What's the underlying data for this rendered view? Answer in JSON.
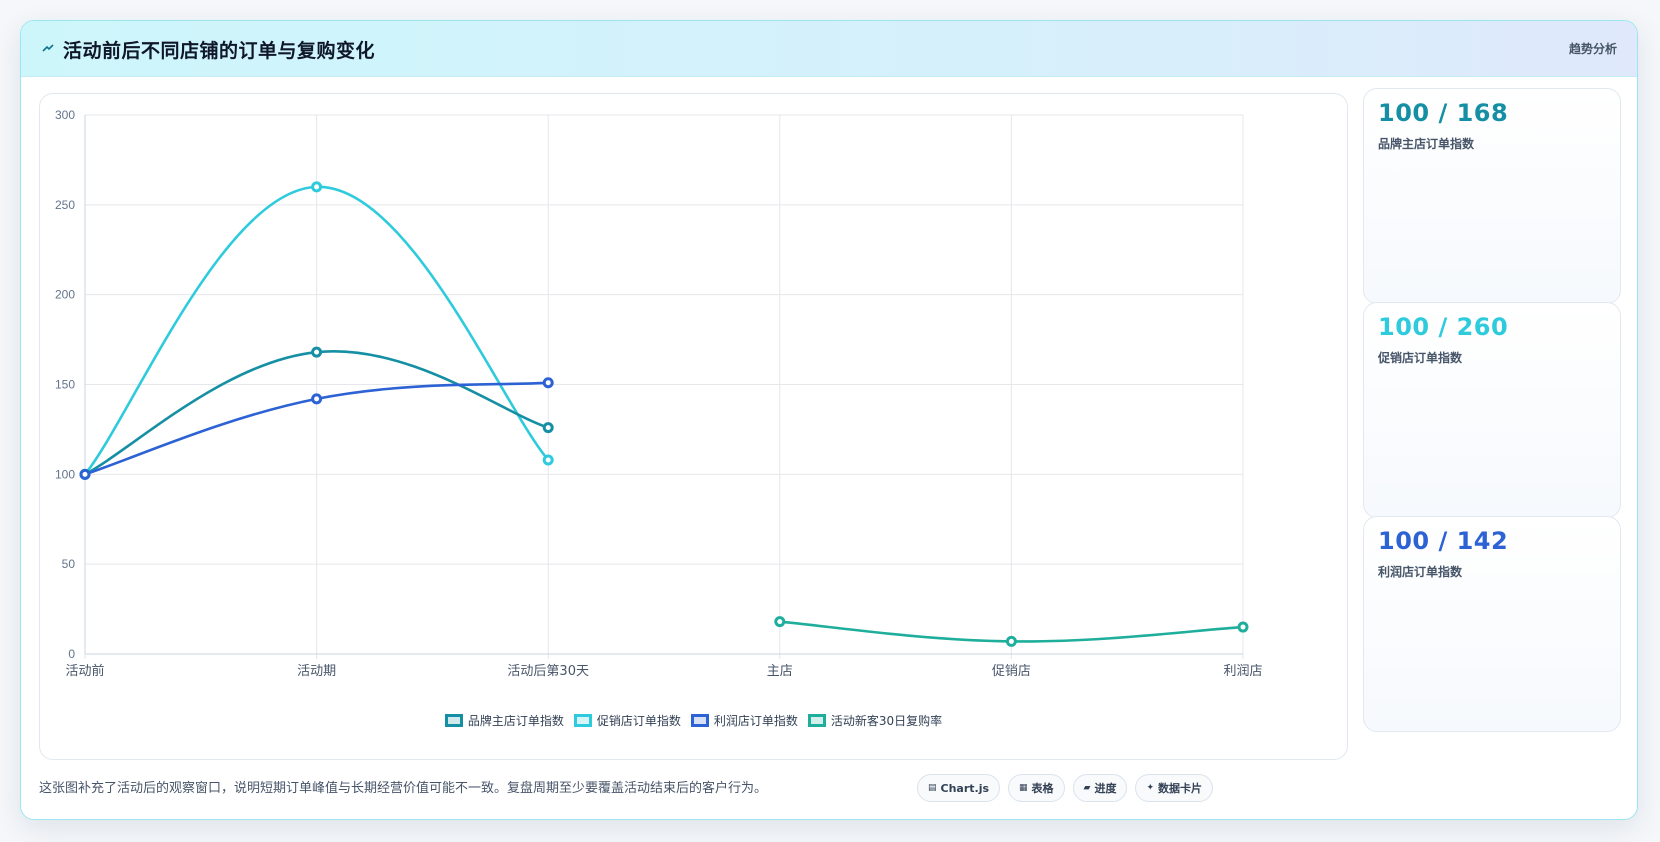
{
  "header": {
    "title": "活动前后不同店铺的订单与复购变化",
    "tag": "趋势分析"
  },
  "chart_data": {
    "type": "line",
    "categories": [
      "活动前",
      "活动期",
      "活动后第30天",
      "主店",
      "促销店",
      "利润店"
    ],
    "ylim": [
      0,
      300
    ],
    "yticks": [
      0,
      50,
      100,
      150,
      200,
      250,
      300
    ],
    "grid": true,
    "legend_position": "bottom",
    "series": [
      {
        "name": "品牌主店订单指数",
        "color": "#158fa3",
        "values": [
          100,
          168,
          126,
          null,
          null,
          null
        ]
      },
      {
        "name": "促销店订单指数",
        "color": "#2ecbdd",
        "values": [
          100,
          260,
          108,
          null,
          null,
          null
        ]
      },
      {
        "name": "利润店订单指数",
        "color": "#2c62d4",
        "values": [
          100,
          142,
          151,
          null,
          null,
          null
        ]
      },
      {
        "name": "活动新客30日复购率",
        "color": "#1fae9c",
        "values": [
          null,
          null,
          null,
          18,
          7,
          15
        ]
      }
    ]
  },
  "stats": [
    {
      "value": "100 / 168",
      "label": "品牌主店订单指数",
      "color": "#158fa3"
    },
    {
      "value": "100 / 260",
      "label": "促销店订单指数",
      "color": "#2ecbdd"
    },
    {
      "value": "100 / 142",
      "label": "利润店订单指数",
      "color": "#2c62d4"
    }
  ],
  "footer": {
    "note": "这张图补充了活动后的观察窗口，说明短期订单峰值与长期经营价值可能不一致。复盘周期至少要覆盖活动结束后的客户行为。",
    "chips": [
      {
        "icon": "▤",
        "label": "Chart.js"
      },
      {
        "icon": "▦",
        "label": "表格"
      },
      {
        "icon": "▰",
        "label": "进度"
      },
      {
        "icon": "✦",
        "label": "数据卡片"
      }
    ]
  }
}
